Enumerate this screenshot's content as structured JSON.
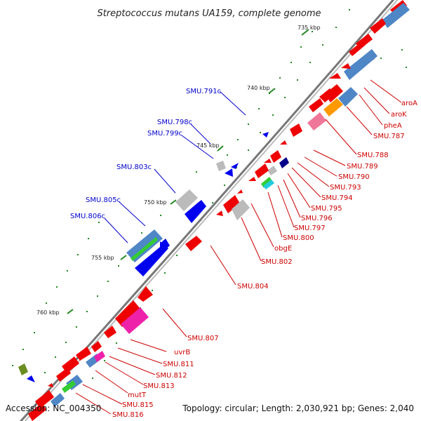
{
  "title": "Streptococcus mutans UA159, complete genome",
  "accession": "Accession: NC_004350",
  "topology": "Topology: circular; Length: 2,030,921 bp; Genes: 2,040",
  "ticks": [
    "735 kbp",
    "740 kbp",
    "745 kbp",
    "750 kbp",
    "755 kbp",
    "760 kbp"
  ],
  "plus_strand_labels": [
    "SMU.791c",
    "SMU.798c",
    "SMU.799c",
    "SMU.803c",
    "SMU.805c",
    "SMU.806c"
  ],
  "minus_strand_labels": [
    "aroA",
    "aroK",
    "pheA",
    "SMU.787",
    "SMU.788",
    "SMU.789",
    "SMU.790",
    "SMU.793",
    "SMU.794",
    "SMU.795",
    "SMU.796",
    "SMU.797",
    "SMU.800",
    "obgE",
    "SMU.802",
    "SMU.804",
    "SMU.807",
    "uvrB",
    "SMU.811",
    "SMU.812",
    "SMU.813",
    "mutT",
    "SMU.815",
    "SMU.816"
  ],
  "colors": {
    "cds_red": "#ee0000",
    "cds_blue": "#0000ee",
    "cog_steelblue": "#4f86c6",
    "cog_pink": "#ee7799",
    "cog_magenta": "#ee22aa",
    "cog_orange": "#ff9900",
    "cog_green": "#33cc33",
    "cog_grey": "#bbbbbb",
    "backbone": "#777777",
    "tick_green": "#228822",
    "label_red": "#cc0000",
    "label_blue": "#0000cc"
  }
}
